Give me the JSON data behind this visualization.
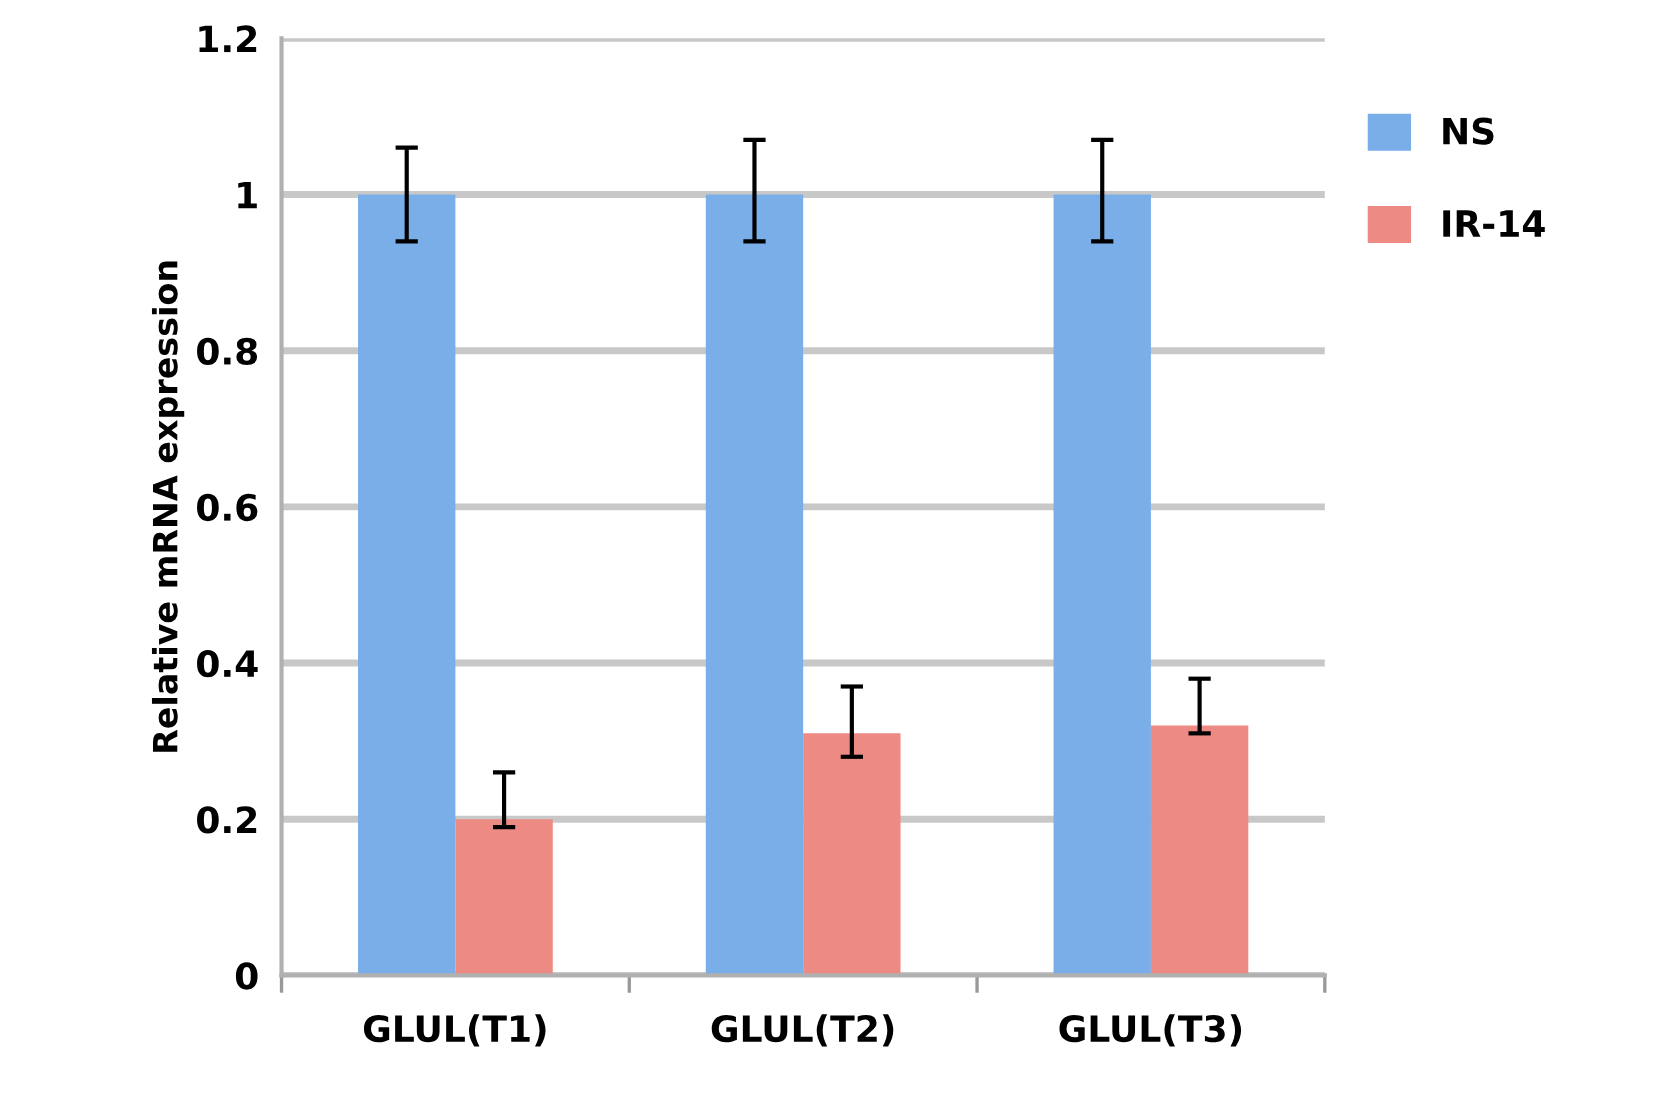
{
  "chart_data": {
    "type": "bar",
    "ylabel": "Relative mRNA expression",
    "categories": [
      "GLUL(T1)",
      "GLUL(T2)",
      "GLUL(T3)"
    ],
    "series": [
      {
        "name": "NS",
        "color": "#7aaee8",
        "values": [
          1,
          1,
          1
        ],
        "errors": [
          [
            0.94,
            1.06
          ],
          [
            0.94,
            1.07
          ],
          [
            0.94,
            1.07
          ]
        ]
      },
      {
        "name": "IR-14",
        "color": "#ee8a84",
        "values": [
          0.2,
          0.31,
          0.32
        ],
        "errors": [
          [
            0.19,
            0.26
          ],
          [
            0.28,
            0.37
          ],
          [
            0.31,
            0.38
          ]
        ]
      }
    ],
    "ylim": [
      0,
      1.2
    ],
    "yticks": [
      0,
      0.2,
      0.4,
      0.6,
      0.8,
      1,
      1.2
    ],
    "grid": "y",
    "legend": "right"
  }
}
